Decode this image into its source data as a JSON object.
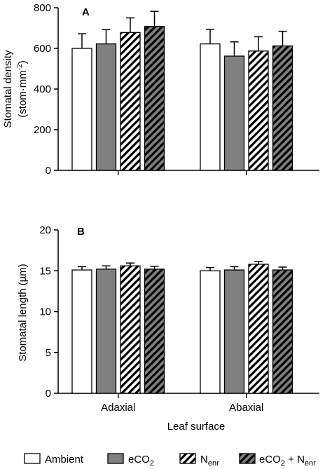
{
  "chart_data": [
    {
      "type": "bar",
      "panel_label": "A",
      "categories": [
        "Adaxial",
        "Abaxial"
      ],
      "ylabel_line1": "Stomatal density",
      "ylabel_line2": {
        "pre": "(stom·mm",
        "sup": "-2",
        "post": ")"
      },
      "ylim": [
        0,
        800
      ],
      "yticks": [
        "0",
        "200",
        "400",
        "600",
        "800"
      ],
      "show_category_labels": false,
      "series": [
        {
          "values": [
            600,
            622
          ],
          "errors": [
            72,
            72
          ],
          "style": "white"
        },
        {
          "values": [
            622,
            562
          ],
          "errors": [
            70,
            70
          ],
          "style": "gray"
        },
        {
          "values": [
            678,
            587
          ],
          "errors": [
            72,
            70
          ],
          "style": "hatch-white"
        },
        {
          "values": [
            708,
            612
          ],
          "errors": [
            74,
            72
          ],
          "style": "hatch-gray"
        }
      ],
      "note": "series values listed per category: [Adaxial, Abaxial]"
    },
    {
      "type": "bar",
      "panel_label": "B",
      "categories": [
        "Adaxial",
        "Abaxial"
      ],
      "ylabel_line1": "Stomatal length (µm)",
      "ylim": [
        0,
        20
      ],
      "yticks": [
        "0",
        "5",
        "10",
        "15",
        "20"
      ],
      "show_category_labels": true,
      "xlabel": "Leaf surface",
      "series": [
        {
          "values": [
            15.1,
            15.0
          ],
          "errors": [
            0.4,
            0.4
          ],
          "style": "white"
        },
        {
          "values": [
            15.2,
            15.1
          ],
          "errors": [
            0.4,
            0.4
          ],
          "style": "gray"
        },
        {
          "values": [
            15.6,
            15.8
          ],
          "errors": [
            0.35,
            0.35
          ],
          "style": "hatch-white"
        },
        {
          "values": [
            15.2,
            15.1
          ],
          "errors": [
            0.35,
            0.35
          ],
          "style": "hatch-gray"
        }
      ]
    }
  ],
  "legend": [
    {
      "style": "white",
      "label": "Ambient"
    },
    {
      "style": "gray",
      "label": "eCO",
      "sub": "2"
    },
    {
      "style": "hatch-white",
      "label": "N",
      "sub": "enr"
    },
    {
      "style": "hatch-gray",
      "label": "eCO",
      "sub": "2",
      "label2": " + N",
      "sub2": "enr"
    }
  ],
  "colors": {
    "gray": "#808080",
    "white": "#ffffff",
    "stroke": "#000000"
  }
}
